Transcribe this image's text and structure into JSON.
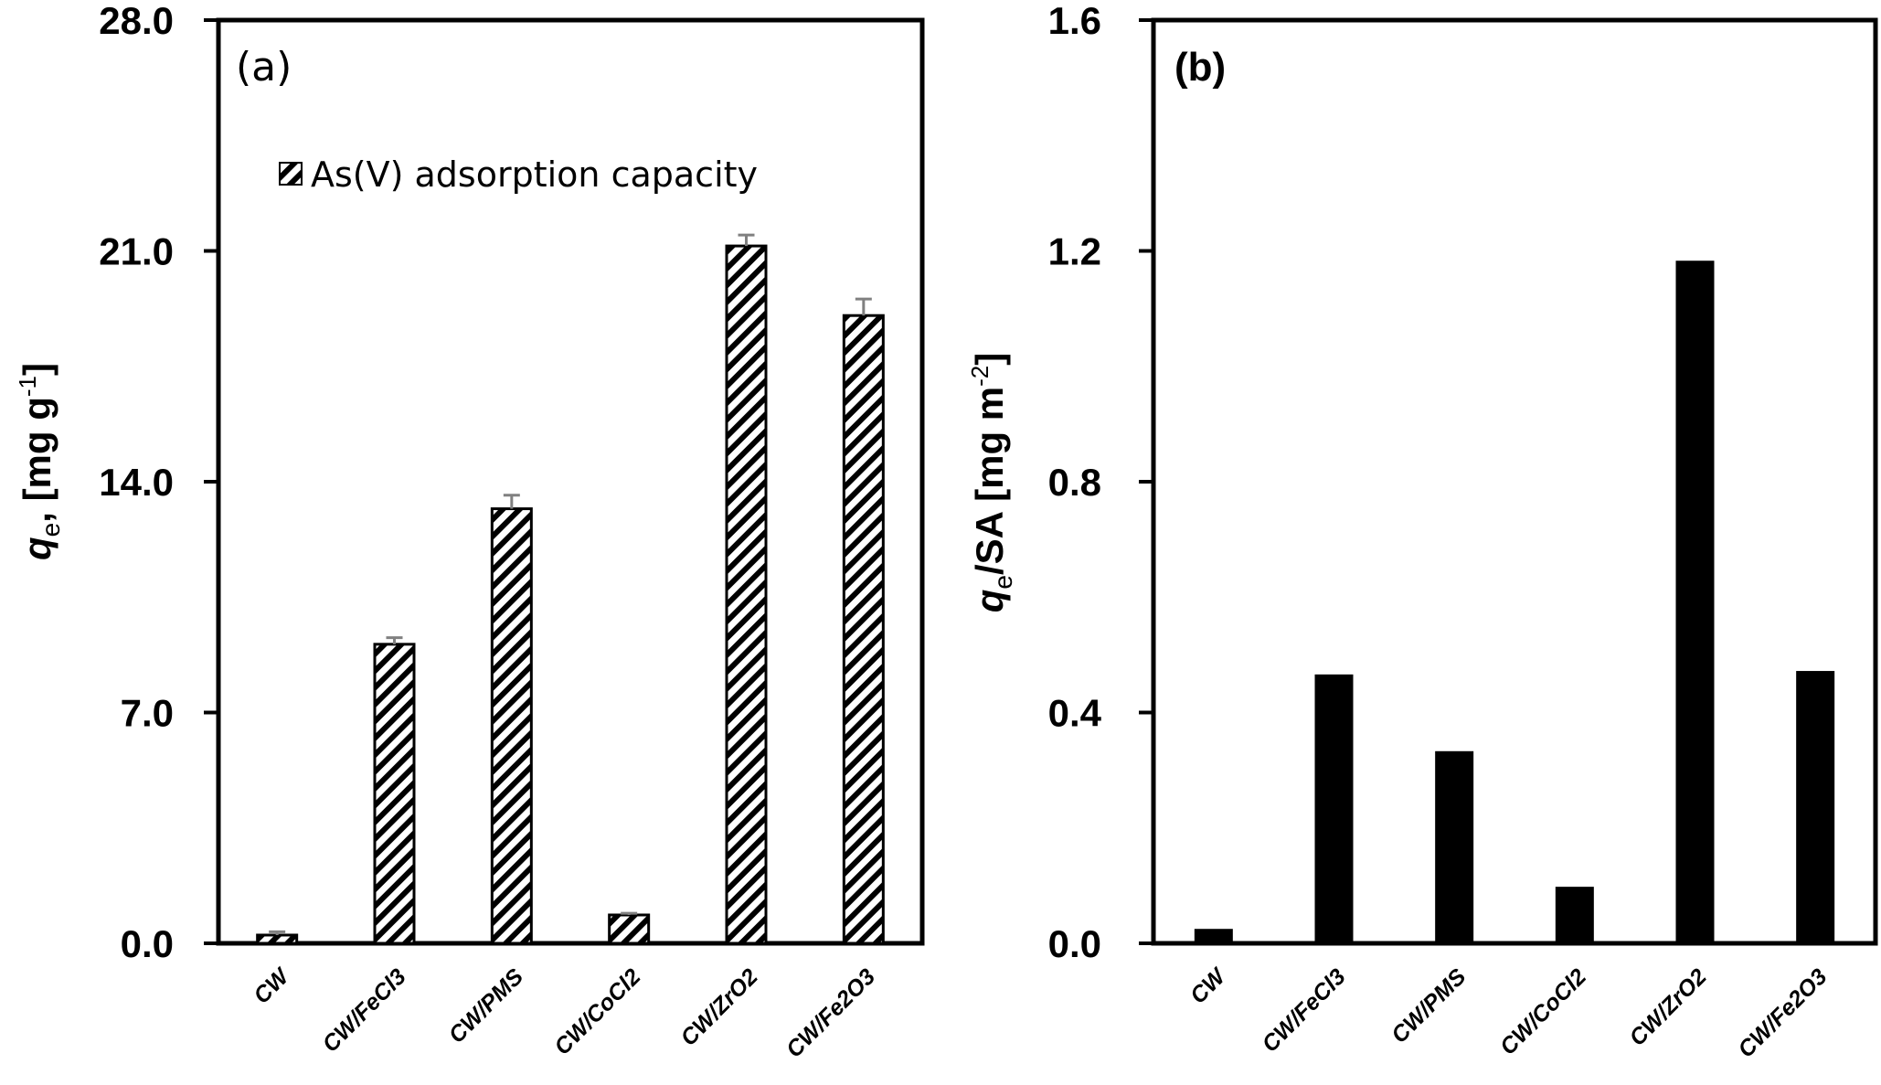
{
  "chart_data": [
    {
      "id": "a",
      "type": "bar",
      "panel_label": "(a)",
      "title": "",
      "xlabel": "",
      "ylabel": {
        "main": "q",
        "sub": "e",
        "rest": ", [mg g",
        "sup": "-1",
        "close": "]"
      },
      "ylim": [
        0,
        28
      ],
      "yticks": [
        0,
        7,
        14,
        21,
        28
      ],
      "ytick_labels": [
        "0.0",
        "7.0",
        "14.0",
        "21.0",
        "28.0"
      ],
      "grid": false,
      "legend": {
        "position": "upper-left",
        "entries": [
          "As(V) adsorption capacity"
        ]
      },
      "fill": "hatched",
      "categories": [
        "CW",
        "CW/FeCl3",
        "CW/PMS",
        "CW/CoCl2",
        "CW/ZrO2",
        "CW/Fe2O3"
      ],
      "series": [
        {
          "name": "As(V) adsorption capacity",
          "values": [
            0.25,
            9.07,
            13.18,
            0.86,
            21.15,
            19.04
          ],
          "errors": [
            0.1,
            0.2,
            0.41,
            0.05,
            0.33,
            0.5
          ]
        }
      ]
    },
    {
      "id": "b",
      "type": "bar",
      "panel_label": "(b)",
      "title": "",
      "xlabel": "",
      "ylabel": {
        "main": "q",
        "sub": "e",
        "rest": "/SA [mg m",
        "sup": "-2",
        "close": "]"
      },
      "ylim": [
        0,
        1.6
      ],
      "yticks": [
        0,
        0.4,
        0.8,
        1.2,
        1.6
      ],
      "ytick_labels": [
        "0.0",
        "0.4",
        "0.8",
        "1.2",
        "1.6"
      ],
      "grid": false,
      "legend": null,
      "fill": "solid",
      "categories": [
        "CW",
        "CW/FeCl3",
        "CW/PMS",
        "CW/CoCl2",
        "CW/ZrO2",
        "CW/Fe2O3"
      ],
      "series": [
        {
          "name": "qe/SA",
          "values": [
            0.025,
            0.466,
            0.333,
            0.098,
            1.183,
            0.472
          ]
        }
      ]
    }
  ],
  "colors": {
    "bar_solid": "#000000",
    "hatch": "#000000",
    "error_bar": "#808080",
    "axis": "#000000",
    "background": "#ffffff"
  }
}
